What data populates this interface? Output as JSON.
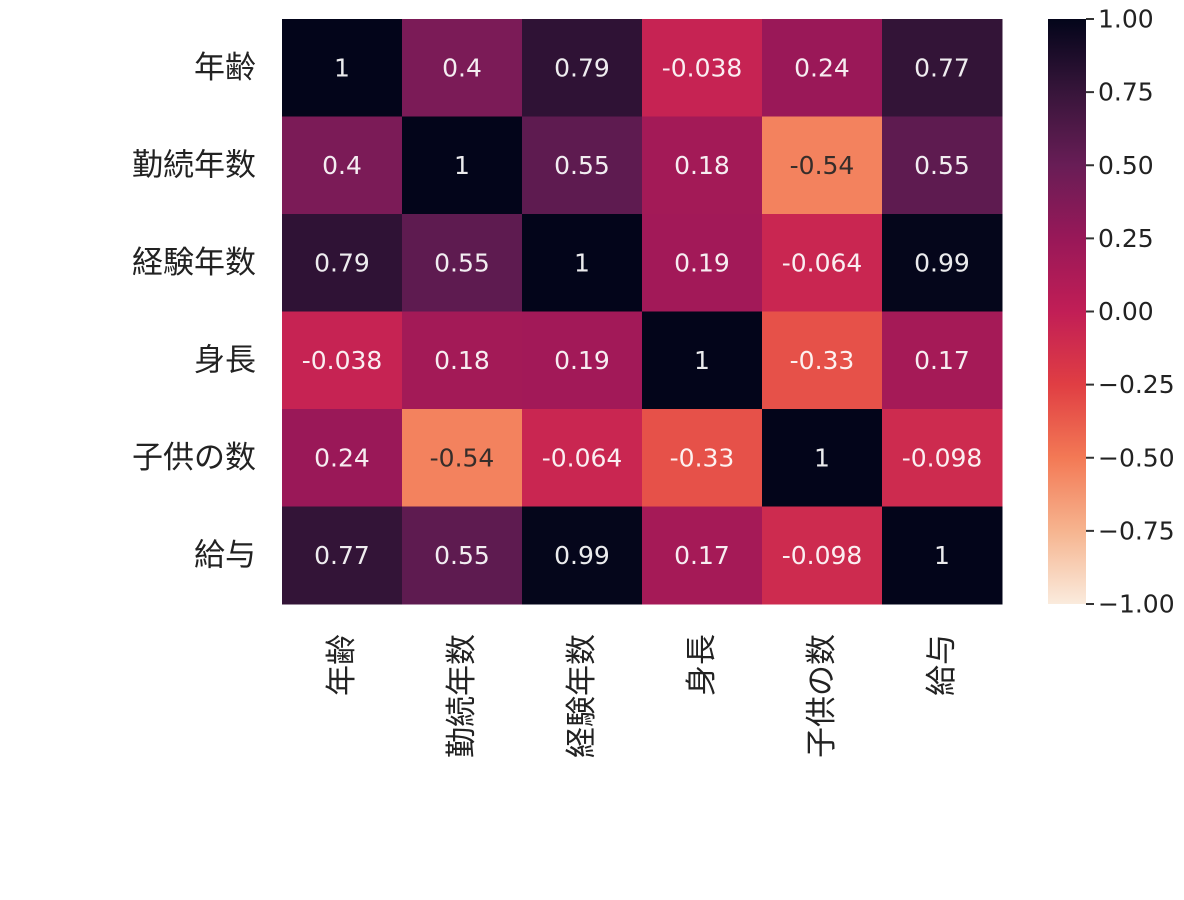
{
  "chart_data": {
    "type": "heatmap",
    "title": "",
    "xlabel": "",
    "ylabel": "",
    "x_categories": [
      "年齢",
      "勤続年数",
      "経験年数",
      "身長",
      "子供の数",
      "給与"
    ],
    "y_categories": [
      "年齢",
      "勤続年数",
      "経験年数",
      "身長",
      "子供の数",
      "給与"
    ],
    "values": [
      [
        1,
        0.4,
        0.79,
        -0.038,
        0.24,
        0.77
      ],
      [
        0.4,
        1,
        0.55,
        0.18,
        -0.54,
        0.55
      ],
      [
        0.79,
        0.55,
        1,
        0.19,
        -0.064,
        0.99
      ],
      [
        -0.038,
        0.18,
        0.19,
        1,
        -0.33,
        0.17
      ],
      [
        0.24,
        -0.54,
        -0.064,
        -0.33,
        1,
        -0.098
      ],
      [
        0.77,
        0.55,
        0.99,
        0.17,
        -0.098,
        1
      ]
    ],
    "value_labels": [
      [
        "1",
        "0.4",
        "0.79",
        "-0.038",
        "0.24",
        "0.77"
      ],
      [
        "0.4",
        "1",
        "0.55",
        "0.18",
        "-0.54",
        "0.55"
      ],
      [
        "0.79",
        "0.55",
        "1",
        "0.19",
        "-0.064",
        "0.99"
      ],
      [
        "-0.038",
        "0.18",
        "0.19",
        "1",
        "-0.33",
        "0.17"
      ],
      [
        "0.24",
        "-0.54",
        "-0.064",
        "-0.33",
        "1",
        "-0.098"
      ],
      [
        "0.77",
        "0.55",
        "0.99",
        "0.17",
        "-0.098",
        "1"
      ]
    ],
    "color_range": [
      -1,
      1
    ],
    "colormap": "rocket_r",
    "colorbar": {
      "ticks": [
        1.0,
        0.75,
        0.5,
        0.25,
        0.0,
        -0.25,
        -0.5,
        -0.75,
        -1.0
      ],
      "tick_labels": [
        "1.00",
        "0.75",
        "0.50",
        "0.25",
        "0.00",
        "−0.25",
        "−0.50",
        "−0.75",
        "−1.00"
      ]
    },
    "x_tick_rotation": "vertical",
    "grid": false
  }
}
